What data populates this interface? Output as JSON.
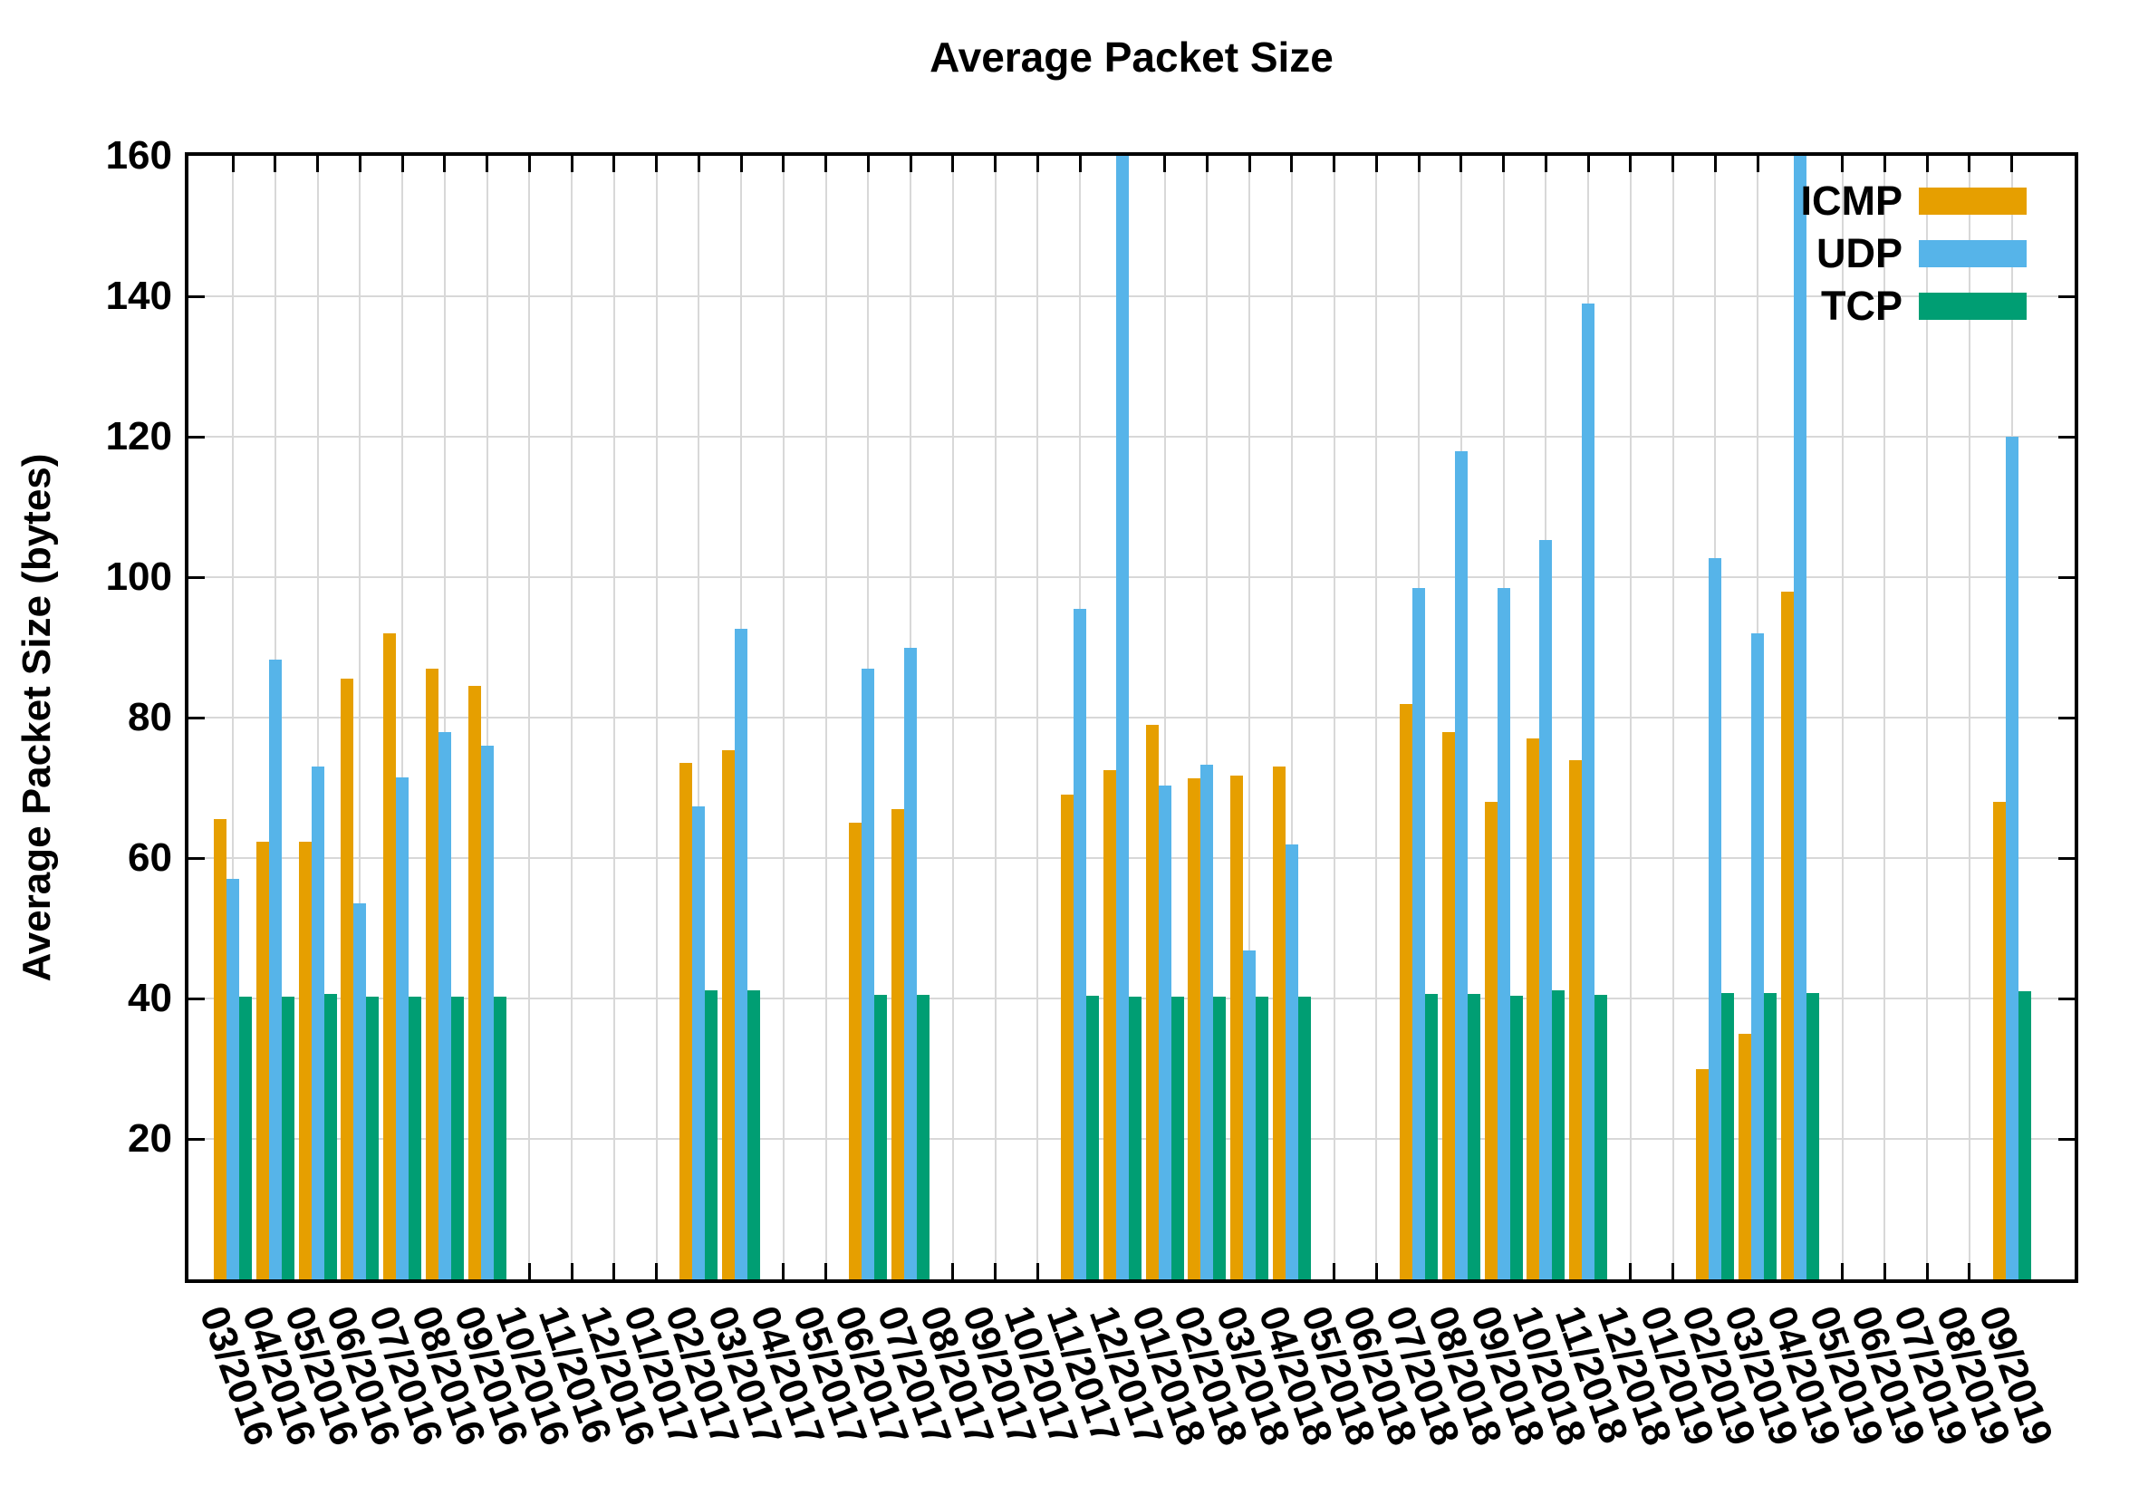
{
  "title": "Average Packet Size",
  "y_axis_title": "Average Packet Size (bytes)",
  "legend": {
    "position": "top-right-inside",
    "entries": [
      {
        "label": "ICMP",
        "color": "#E69F00"
      },
      {
        "label": "UDP",
        "color": "#56B4E9"
      },
      {
        "label": "TCP",
        "color": "#009E73"
      }
    ]
  },
  "axes": {
    "y_tick_labels": [
      "20",
      "40",
      "60",
      "80",
      "100",
      "120",
      "140",
      "160"
    ],
    "y_tick_values": [
      20,
      40,
      60,
      80,
      100,
      120,
      140,
      160
    ],
    "grid": "both-light-gray",
    "tick_style": "inward-mirrored-all-four-sides"
  },
  "colors": {
    "background": "#ffffff",
    "grid": "#d8d8d8",
    "axis": "#000000",
    "icmp": "#E69F00",
    "udp": "#56B4E9",
    "tcp": "#009E73"
  },
  "chart_data": {
    "type": "bar",
    "title": "Average Packet Size",
    "xlabel": "",
    "ylabel": "Average Packet Size (bytes)",
    "ylim": [
      0,
      160
    ],
    "ytick_interval": 20,
    "grid": true,
    "legend_position": "top-right",
    "bar_layout": "clustered-3-per-month",
    "note": "UDP bars for 12/2017 and 04/2019 exceed the y-axis maximum and are clipped at 160",
    "categories": [
      "03/2016",
      "04/2016",
      "05/2016",
      "06/2016",
      "07/2016",
      "08/2016",
      "09/2016",
      "10/2016",
      "11/2016",
      "12/2016",
      "01/2017",
      "02/2017",
      "03/2017",
      "04/2017",
      "05/2017",
      "06/2017",
      "07/2017",
      "08/2017",
      "09/2017",
      "10/2017",
      "11/2017",
      "12/2017",
      "01/2018",
      "02/2018",
      "03/2018",
      "04/2018",
      "05/2018",
      "06/2018",
      "07/2018",
      "08/2018",
      "09/2018",
      "10/2018",
      "11/2018",
      "12/2018",
      "01/2019",
      "02/2019",
      "03/2019",
      "04/2019",
      "05/2019",
      "06/2019",
      "07/2019",
      "08/2019",
      "09/2019"
    ],
    "series": [
      {
        "name": "ICMP",
        "color": "#E69F00",
        "values": [
          65.5,
          62.3,
          62.3,
          85.5,
          92,
          87,
          84.5,
          null,
          null,
          null,
          null,
          73.5,
          75.3,
          null,
          null,
          65,
          67,
          null,
          null,
          null,
          69,
          72.5,
          79,
          71.3,
          71.7,
          73,
          null,
          null,
          82,
          78,
          68,
          77,
          74,
          null,
          null,
          30,
          35,
          98,
          null,
          null,
          null,
          null,
          68
        ]
      },
      {
        "name": "UDP",
        "color": "#56B4E9",
        "values": [
          57,
          88.3,
          73,
          53.5,
          71.5,
          78,
          76,
          null,
          null,
          null,
          null,
          67.3,
          92.6,
          null,
          null,
          87,
          90,
          null,
          null,
          null,
          95.5,
          160,
          70.3,
          73.3,
          46.8,
          62,
          null,
          null,
          98.5,
          118,
          98.5,
          105.3,
          139,
          null,
          null,
          102.7,
          92,
          160,
          null,
          null,
          null,
          null,
          120
        ]
      },
      {
        "name": "TCP",
        "color": "#009E73",
        "values": [
          40.3,
          40.3,
          40.6,
          40.3,
          40.3,
          40.3,
          40.3,
          null,
          null,
          null,
          null,
          41.2,
          41.2,
          null,
          null,
          40.5,
          40.5,
          null,
          null,
          null,
          40.4,
          40.2,
          40.3,
          40.3,
          40.3,
          40.3,
          null,
          null,
          40.6,
          40.6,
          40.4,
          41.2,
          40.5,
          null,
          null,
          40.8,
          40.8,
          40.8,
          null,
          null,
          null,
          null,
          41
        ]
      }
    ]
  }
}
